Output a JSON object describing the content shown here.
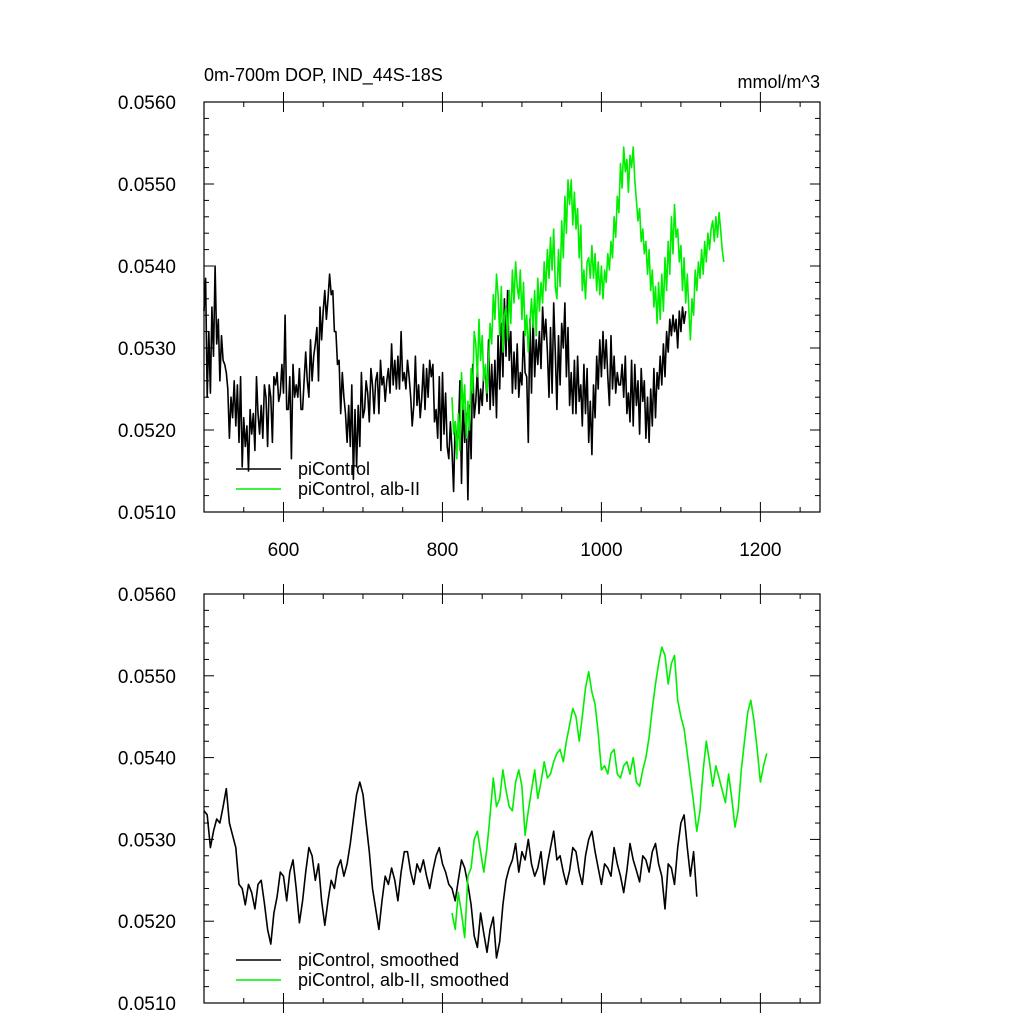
{
  "figure": {
    "title": "0m-700m DOP, IND_44S-18S",
    "units": "mmol/m^3",
    "colors": {
      "piControl": "#000000",
      "alb-II": "#00ee00"
    }
  },
  "chart_data": [
    {
      "type": "line",
      "title": "0m-700m DOP, IND_44S-18S",
      "units": "mmol/m^3",
      "xlim": [
        500,
        1275
      ],
      "ylim": [
        0.051,
        0.056
      ],
      "xticks": [
        "600",
        "800",
        "1000",
        "1200"
      ],
      "yticks": [
        "0.0510",
        "0.0520",
        "0.0530",
        "0.0540",
        "0.0550",
        "0.0560"
      ],
      "legend": {
        "position": "bottom-left",
        "entries": [
          "piControl",
          "piControl, alb-II"
        ]
      },
      "series": [
        {
          "name": "piControl",
          "color": "#000000",
          "x_start": 500,
          "x_step": 2,
          "values": [
            0.05345,
            0.05385,
            0.0524,
            0.0532,
            0.05245,
            0.0535,
            0.0529,
            0.054,
            0.05305,
            0.05335,
            0.0526,
            0.05315,
            0.05285,
            0.0528,
            0.0527,
            0.0525,
            0.0519,
            0.0524,
            0.05215,
            0.0526,
            0.05205,
            0.05255,
            0.05185,
            0.05265,
            0.05155,
            0.05215,
            0.0518,
            0.05205,
            0.0515,
            0.05225,
            0.05195,
            0.0522,
            0.05175,
            0.05265,
            0.0522,
            0.05195,
            0.0523,
            0.0519,
            0.05255,
            0.0524,
            0.0518,
            0.05255,
            0.0524,
            0.05185,
            0.05265,
            0.05255,
            0.0527,
            0.05235,
            0.05245,
            0.0528,
            0.05245,
            0.0534,
            0.05225,
            0.05225,
            0.05265,
            0.05165,
            0.0528,
            0.0524,
            0.05255,
            0.0524,
            0.05275,
            0.05225,
            0.05225,
            0.0526,
            0.05295,
            0.0526,
            0.0524,
            0.0531,
            0.0526,
            0.0529,
            0.05305,
            0.05325,
            0.0526,
            0.0535,
            0.0531,
            0.05345,
            0.0537,
            0.05335,
            0.0536,
            0.0539,
            0.05365,
            0.0537,
            0.0532,
            0.0532,
            0.0528,
            0.05285,
            0.0522,
            0.0527,
            0.0524,
            0.0522,
            0.05185,
            0.0523,
            0.0518,
            0.05255,
            0.0514,
            0.05225,
            0.05155,
            0.0523,
            0.0518,
            0.0527,
            0.05215,
            0.05225,
            0.0526,
            0.05245,
            0.0521,
            0.05275,
            0.05255,
            0.0522,
            0.0526,
            0.0527,
            0.0522,
            0.05285,
            0.05255,
            0.05265,
            0.05235,
            0.0526,
            0.05275,
            0.05245,
            0.05305,
            0.05255,
            0.05285,
            0.0525,
            0.0529,
            0.0525,
            0.0532,
            0.0526,
            0.0527,
            0.0525,
            0.05285,
            0.05265,
            0.0524,
            0.05205,
            0.0523,
            0.0529,
            0.0523,
            0.05255,
            0.05215,
            0.0524,
            0.0528,
            0.05225,
            0.05275,
            0.0524,
            0.05285,
            0.05265,
            0.0528,
            0.0521,
            0.05225,
            0.0519,
            0.05265,
            0.05175,
            0.0527,
            0.05195,
            0.05245,
            0.0518,
            0.05165,
            0.0521,
            0.05175,
            0.05125,
            0.0521,
            0.05185,
            0.05195,
            0.0526,
            0.05135,
            0.05235,
            0.05185,
            0.0522,
            0.05115,
            0.0523,
            0.05165,
            0.0528,
            0.05215,
            0.05235,
            0.05275,
            0.0522,
            0.0525,
            0.0523,
            0.0527,
            0.05275,
            0.05235,
            0.0531,
            0.05225,
            0.0528,
            0.0523,
            0.05285,
            0.05215,
            0.05315,
            0.0525,
            0.0533,
            0.05265,
            0.0536,
            0.0529,
            0.0537,
            0.05285,
            0.0532,
            0.05245,
            0.05295,
            0.0525,
            0.05305,
            0.0524,
            0.0527,
            0.05255,
            0.0532,
            0.0527,
            0.05265,
            0.05185,
            0.05335,
            0.05245,
            0.0534,
            0.05265,
            0.0531,
            0.0528,
            0.0532,
            0.05275,
            0.0535,
            0.0531,
            0.05335,
            0.05295,
            0.0524,
            0.05325,
            0.05245,
            0.05355,
            0.05295,
            0.05225,
            0.05315,
            0.05255,
            0.0533,
            0.053,
            0.05355,
            0.05265,
            0.05325,
            0.0523,
            0.0527,
            0.0522,
            0.05285,
            0.0522,
            0.0529,
            0.05235,
            0.05255,
            0.05205,
            0.0528,
            0.0522,
            0.05275,
            0.05185,
            0.05235,
            0.0517,
            0.05255,
            0.05215,
            0.0529,
            0.0525,
            0.0531,
            0.05265,
            0.0532,
            0.05275,
            0.0531,
            0.05265,
            0.0523,
            0.05315,
            0.0525,
            0.0529,
            0.05245,
            0.0527,
            0.05255,
            0.05255,
            0.0528,
            0.0524,
            0.0529,
            0.0522,
            0.05245,
            0.0521,
            0.05285,
            0.05205,
            0.0528,
            0.0523,
            0.0526,
            0.05195,
            0.05275,
            0.05235,
            0.0526,
            0.0519,
            0.0524,
            0.05185,
            0.0525,
            0.05205,
            0.05275,
            0.05215,
            0.0527,
            0.0525,
            0.0529,
            0.05255,
            0.05305,
            0.05265,
            0.0532,
            0.05295,
            0.05335,
            0.05315,
            0.0534,
            0.0532,
            0.05335,
            0.053,
            0.05345,
            0.0532,
            0.0535,
            0.0533,
            0.05345
          ],
          "x_max": 1200
        },
        {
          "name": "piControl, alb-II",
          "color": "#00ee00",
          "x_start": 812,
          "x_step": 2,
          "values": [
            0.0524,
            0.05195,
            0.0521,
            0.05165,
            0.0522,
            0.05175,
            0.0527,
            0.05225,
            0.05255,
            0.0519,
            0.05235,
            0.052,
            0.05275,
            0.05245,
            0.0532,
            0.05305,
            0.05265,
            0.05335,
            0.05285,
            0.05315,
            0.0526,
            0.0528,
            0.05245,
            0.05285,
            0.0533,
            0.05305,
            0.05365,
            0.05335,
            0.0539,
            0.05365,
            0.05315,
            0.05375,
            0.05295,
            0.0534,
            0.0535,
            0.0531,
            0.0537,
            0.0533,
            0.05395,
            0.05355,
            0.05405,
            0.05375,
            0.0536,
            0.05395,
            0.05335,
            0.0538,
            0.05315,
            0.0534,
            0.05295,
            0.0533,
            0.0536,
            0.05325,
            0.0537,
            0.05315,
            0.05385,
            0.05345,
            0.0538,
            0.05355,
            0.05405,
            0.0537,
            0.0542,
            0.05385,
            0.05435,
            0.05395,
            0.05445,
            0.05375,
            0.0536,
            0.0542,
            0.05375,
            0.05455,
            0.0541,
            0.05485,
            0.0544,
            0.05505,
            0.05475,
            0.05505,
            0.0545,
            0.0549,
            0.05445,
            0.0547,
            0.0541,
            0.0545,
            0.0537,
            0.05395,
            0.0536,
            0.05405,
            0.0541,
            0.05385,
            0.05425,
            0.05385,
            0.05415,
            0.0537,
            0.05405,
            0.05365,
            0.054,
            0.0536,
            0.05395,
            0.0538,
            0.05415,
            0.05395,
            0.0543,
            0.0541,
            0.0546,
            0.05435,
            0.05485,
            0.05465,
            0.05525,
            0.05495,
            0.05545,
            0.05515,
            0.0553,
            0.0549,
            0.05535,
            0.0552,
            0.05545,
            0.05505,
            0.0548,
            0.05455,
            0.0547,
            0.0543,
            0.05445,
            0.05415,
            0.0543,
            0.0539,
            0.0542,
            0.0537,
            0.05395,
            0.0535,
            0.05375,
            0.0533,
            0.0538,
            0.05335,
            0.0539,
            0.05345,
            0.0541,
            0.0537,
            0.0543,
            0.0539,
            0.0546,
            0.05415,
            0.05475,
            0.05435,
            0.05445,
            0.05405,
            0.05425,
            0.0537,
            0.0541,
            0.05355,
            0.0539,
            0.05345,
            0.0531,
            0.0536,
            0.0534,
            0.05395,
            0.0537,
            0.05405,
            0.05385,
            0.0542,
            0.0539,
            0.0543,
            0.05405,
            0.0544,
            0.0542,
            0.05445,
            0.05455,
            0.0543,
            0.0546,
            0.05435,
            0.05465,
            0.05445,
            0.0542,
            0.05405
          ]
        }
      ]
    },
    {
      "type": "line",
      "xlim": [
        500,
        1275
      ],
      "ylim": [
        0.051,
        0.056
      ],
      "yticks": [
        "0.0510",
        "0.0520",
        "0.0530",
        "0.0540",
        "0.0550",
        "0.0560"
      ],
      "legend": {
        "position": "bottom-left",
        "entries": [
          "piControl, smoothed",
          "piControl, alb-II, smoothed"
        ]
      },
      "series": [
        {
          "name": "piControl, smoothed",
          "color": "#000000",
          "x_start": 500,
          "x_step": 4,
          "values": [
            0.05335,
            0.0533,
            0.0529,
            0.0531,
            0.05325,
            0.0532,
            0.0534,
            0.05362,
            0.0532,
            0.05305,
            0.0529,
            0.05245,
            0.0524,
            0.0522,
            0.05245,
            0.05235,
            0.05215,
            0.05245,
            0.0525,
            0.05222,
            0.0519,
            0.05172,
            0.0521,
            0.0523,
            0.0526,
            0.05255,
            0.05225,
            0.0526,
            0.05275,
            0.0524,
            0.05198,
            0.05225,
            0.0526,
            0.0529,
            0.0528,
            0.0525,
            0.0527,
            0.05225,
            0.05195,
            0.05225,
            0.0525,
            0.0524,
            0.05265,
            0.05275,
            0.05255,
            0.0527,
            0.05295,
            0.05325,
            0.05355,
            0.0537,
            0.05355,
            0.0532,
            0.05285,
            0.0524,
            0.05215,
            0.0519,
            0.05225,
            0.05255,
            0.05245,
            0.05265,
            0.0525,
            0.05225,
            0.0526,
            0.05285,
            0.05285,
            0.0526,
            0.05245,
            0.0527,
            0.0526,
            0.05275,
            0.05255,
            0.0524,
            0.05262,
            0.0528,
            0.0529,
            0.0527,
            0.0526,
            0.05245,
            0.0524,
            0.05225,
            0.0525,
            0.05275,
            0.05265,
            0.05245,
            0.0522,
            0.05182,
            0.05168,
            0.0521,
            0.05185,
            0.05162,
            0.0519,
            0.05205,
            0.05155,
            0.05175,
            0.0522,
            0.0525,
            0.05265,
            0.05275,
            0.05295,
            0.0526,
            0.05285,
            0.05275,
            0.053,
            0.0527,
            0.05255,
            0.05265,
            0.05285,
            0.05245,
            0.0527,
            0.0529,
            0.0531,
            0.05275,
            0.0528,
            0.0526,
            0.05245,
            0.05262,
            0.0529,
            0.05285,
            0.0526,
            0.05245,
            0.0528,
            0.053,
            0.0531,
            0.05285,
            0.05265,
            0.05245,
            0.0527,
            0.05265,
            0.05255,
            0.0529,
            0.0527,
            0.05255,
            0.05235,
            0.05262,
            0.05295,
            0.05275,
            0.05262,
            0.05248,
            0.0528,
            0.05275,
            0.0526,
            0.05285,
            0.05295,
            0.0527,
            0.05255,
            0.05215,
            0.0527,
            0.05265,
            0.05245,
            0.0529,
            0.0532,
            0.0533,
            0.0529,
            0.05255,
            0.05285,
            0.0523
          ],
          "x_max": 1200
        },
        {
          "name": "piControl, alb-II, smoothed",
          "color": "#00ee00",
          "x_start": 812,
          "x_step": 4,
          "values": [
            0.0521,
            0.0519,
            0.05235,
            0.0521,
            0.0518,
            0.05255,
            0.05265,
            0.053,
            0.0531,
            0.05285,
            0.0526,
            0.0529,
            0.0533,
            0.05375,
            0.0534,
            0.0535,
            0.05385,
            0.0536,
            0.0534,
            0.05335,
            0.0537,
            0.05385,
            0.05365,
            0.05305,
            0.05335,
            0.0536,
            0.05385,
            0.0535,
            0.0537,
            0.05395,
            0.05375,
            0.0538,
            0.05395,
            0.05405,
            0.0541,
            0.05395,
            0.0542,
            0.0544,
            0.0546,
            0.0545,
            0.0542,
            0.0545,
            0.05485,
            0.05505,
            0.0548,
            0.05465,
            0.0543,
            0.05385,
            0.0539,
            0.0538,
            0.05405,
            0.0541,
            0.0538,
            0.05375,
            0.0539,
            0.05395,
            0.0538,
            0.054,
            0.0537,
            0.05365,
            0.05385,
            0.054,
            0.05425,
            0.0546,
            0.0549,
            0.05515,
            0.05535,
            0.05525,
            0.0549,
            0.05515,
            0.05525,
            0.0547,
            0.0545,
            0.05435,
            0.05405,
            0.05375,
            0.05345,
            0.0531,
            0.05335,
            0.05385,
            0.0542,
            0.05395,
            0.05365,
            0.0539,
            0.05375,
            0.0536,
            0.05345,
            0.0538,
            0.0535,
            0.05315,
            0.05335,
            0.05385,
            0.0542,
            0.05455,
            0.0547,
            0.05445,
            0.0541,
            0.0537,
            0.0539,
            0.05405
          ]
        }
      ]
    }
  ]
}
